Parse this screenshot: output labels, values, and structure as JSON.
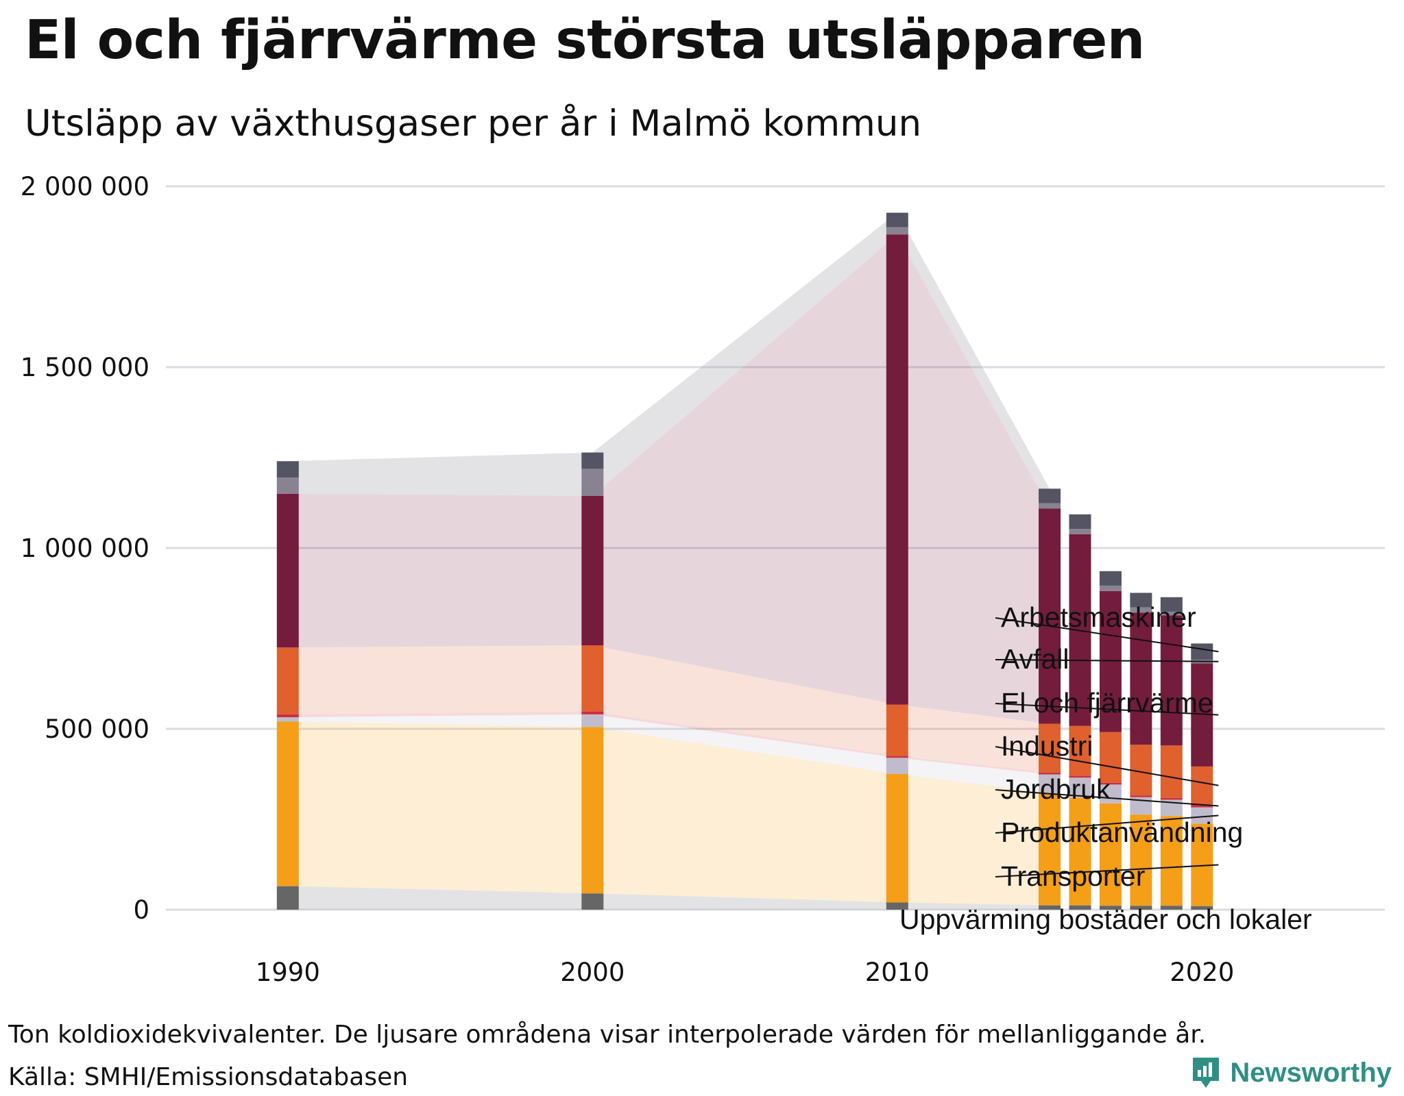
{
  "title": "El och fjärrvärme största utsläpparen",
  "subtitle": "Utsläpp av växthusgaser per år i Malmö kommun",
  "footer": {
    "note": "Ton koldioxidekvivalenter. De ljusare områdena visar interpolerade värden för mellanliggande år.",
    "source": "Källa: SMHI/Emissionsdatabasen"
  },
  "brand": {
    "name": "Newsworthy",
    "icon": "newsworthy-logo-icon",
    "color": "#2f8f84"
  },
  "chart_data": {
    "type": "bar",
    "stacked": true,
    "years": [
      1990,
      2000,
      2010,
      2015,
      2016,
      2017,
      2018,
      2019,
      2020
    ],
    "x_tick_labels": [
      "1990",
      "2000",
      "2010",
      "2020"
    ],
    "x_ticks": [
      1990,
      2000,
      2010,
      2020
    ],
    "xlim": [
      1986,
      2026
    ],
    "ylim": [
      0,
      2000000
    ],
    "y_ticks": [
      0,
      500000,
      1000000,
      1500000,
      2000000
    ],
    "y_tick_labels": [
      "0",
      "500 000",
      "1 000 000",
      "1 500 000",
      "2 000 000"
    ],
    "grid": true,
    "legend": "right-side direct labels",
    "series": [
      {
        "name": "Uppvärming bostäder och lokaler",
        "color": "#666666",
        "values": [
          65000,
          45000,
          20000,
          12000,
          12000,
          11000,
          11000,
          11000,
          10000
        ]
      },
      {
        "name": "Transporter",
        "color": "#f59e18",
        "values": [
          455000,
          460000,
          355000,
          310000,
          298000,
          283000,
          252000,
          248000,
          228000
        ]
      },
      {
        "name": "Produktanvändning",
        "color": "#c0bccb",
        "values": [
          12000,
          35000,
          45000,
          52000,
          55000,
          52000,
          48000,
          45000,
          45000
        ]
      },
      {
        "name": "Jordbruk",
        "color": "#cc2f3e",
        "values": [
          8000,
          8000,
          5000,
          5000,
          5000,
          5000,
          5000,
          5000,
          8000
        ]
      },
      {
        "name": "Industri",
        "color": "#e0602e",
        "values": [
          185000,
          183000,
          142000,
          135000,
          138000,
          140000,
          140000,
          145000,
          105000
        ]
      },
      {
        "name": "El och fjärrvärme",
        "color": "#741c3c",
        "values": [
          425000,
          413000,
          1300000,
          595000,
          530000,
          390000,
          365000,
          360000,
          285000
        ]
      },
      {
        "name": "Avfall",
        "color": "#898391",
        "values": [
          45000,
          75000,
          20000,
          15000,
          15000,
          15000,
          15000,
          10000,
          10000
        ]
      },
      {
        "name": "Arbetsmaskiner",
        "color": "#545463",
        "values": [
          45000,
          45000,
          40000,
          40000,
          40000,
          40000,
          40000,
          40000,
          45000
        ]
      }
    ],
    "labels_order": [
      "Arbetsmaskiner",
      "Avfall",
      "El och fjärrvärme",
      "Industri",
      "Jordbruk",
      "Produktanvändning",
      "Transporter",
      "Uppvärming bostäder och lokaler"
    ]
  }
}
